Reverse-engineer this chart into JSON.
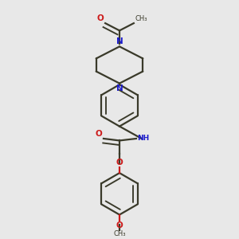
{
  "bg_color": "#e8e8e8",
  "bond_color": "#3a3a2a",
  "N_color": "#1a1acc",
  "O_color": "#cc1a1a",
  "line_width": 1.6,
  "dbo": 0.018,
  "figsize": [
    3.0,
    3.0
  ],
  "dpi": 100,
  "xlim": [
    0.1,
    0.9
  ],
  "ylim": [
    0.03,
    0.97
  ]
}
